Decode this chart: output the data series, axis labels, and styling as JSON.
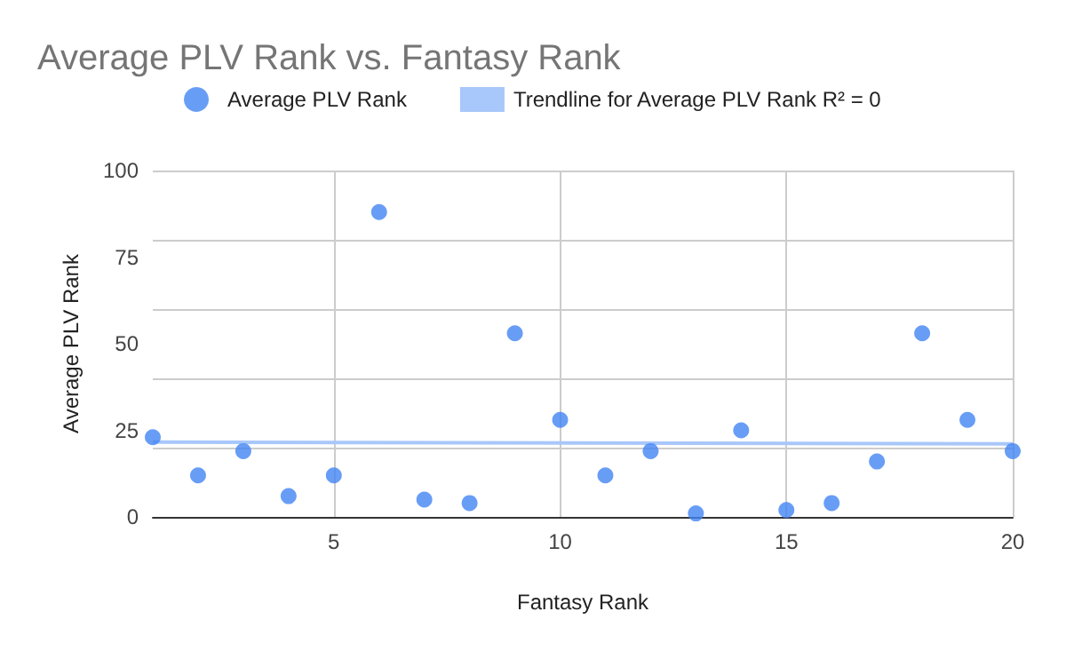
{
  "chart_data": {
    "type": "scatter",
    "title": "Average PLV Rank vs. Fantasy Rank",
    "xlabel": "Fantasy Rank",
    "ylabel": "Average PLV Rank",
    "xlim": [
      1,
      20
    ],
    "xticks": [
      5,
      10,
      15,
      20
    ],
    "ylim": [
      0,
      100
    ],
    "yticks": [
      0,
      25,
      50,
      75,
      100
    ],
    "grid": true,
    "legend": "top",
    "series": [
      {
        "name": "Average PLV Rank",
        "color": "#4285f4",
        "marker": "circle",
        "x": [
          1,
          2,
          3,
          4,
          5,
          6,
          7,
          8,
          9,
          10,
          11,
          12,
          13,
          14,
          15,
          16,
          17,
          18,
          19,
          20
        ],
        "values": [
          23,
          12,
          19,
          6,
          12,
          88,
          5,
          4,
          53,
          28,
          12,
          19,
          1,
          25,
          2,
          4,
          16,
          53,
          28,
          19
        ]
      },
      {
        "type": "line",
        "name": "Trendline for Average PLV Rank R² = 0",
        "color": "#a8c7fa",
        "marker": "none",
        "x": [
          1,
          20
        ],
        "values": [
          21.6,
          21.1
        ]
      }
    ]
  }
}
